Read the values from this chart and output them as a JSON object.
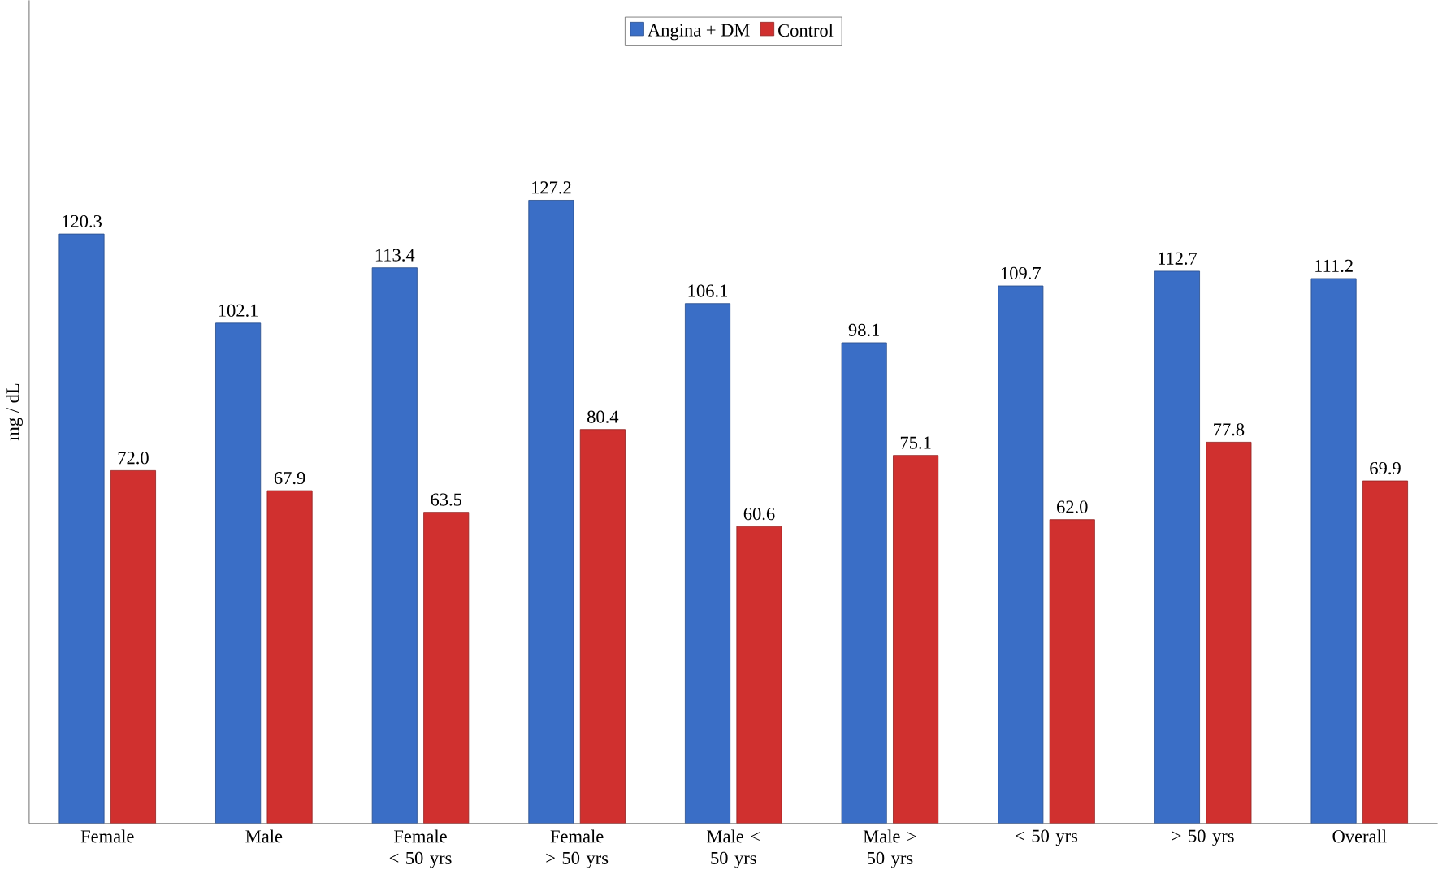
{
  "chart_data": {
    "type": "bar",
    "ylabel": "mg / dL",
    "categories": [
      "Female",
      "Male",
      "Female < 50 yrs",
      "Female > 50 yrs",
      "Male < 50 yrs",
      "Male > 50 yrs",
      "< 50 yrs",
      "> 50 yrs",
      "Overall"
    ],
    "series": [
      {
        "name": "Angina + DM",
        "color": "#3a6ec6",
        "values": [
          120.3,
          102.1,
          113.4,
          127.2,
          106.1,
          98.1,
          109.7,
          112.7,
          111.2
        ],
        "value_labels": [
          "120.3",
          "102.1",
          "113.4",
          "127.2",
          "106.1",
          "98.1",
          "109.7",
          "112.7",
          "111.2"
        ]
      },
      {
        "name": "Control",
        "color": "#d0302f",
        "values": [
          72.0,
          67.9,
          63.5,
          80.4,
          60.6,
          75.1,
          62.0,
          77.8,
          69.9
        ],
        "value_labels": [
          "72.0",
          "67.9",
          "63.5",
          "80.4",
          "60.6",
          "75.1",
          "62.0",
          "77.8",
          "69.9"
        ]
      }
    ],
    "ylim": [
      0,
      168
    ],
    "tick_labels": "x",
    "legend": "top"
  }
}
